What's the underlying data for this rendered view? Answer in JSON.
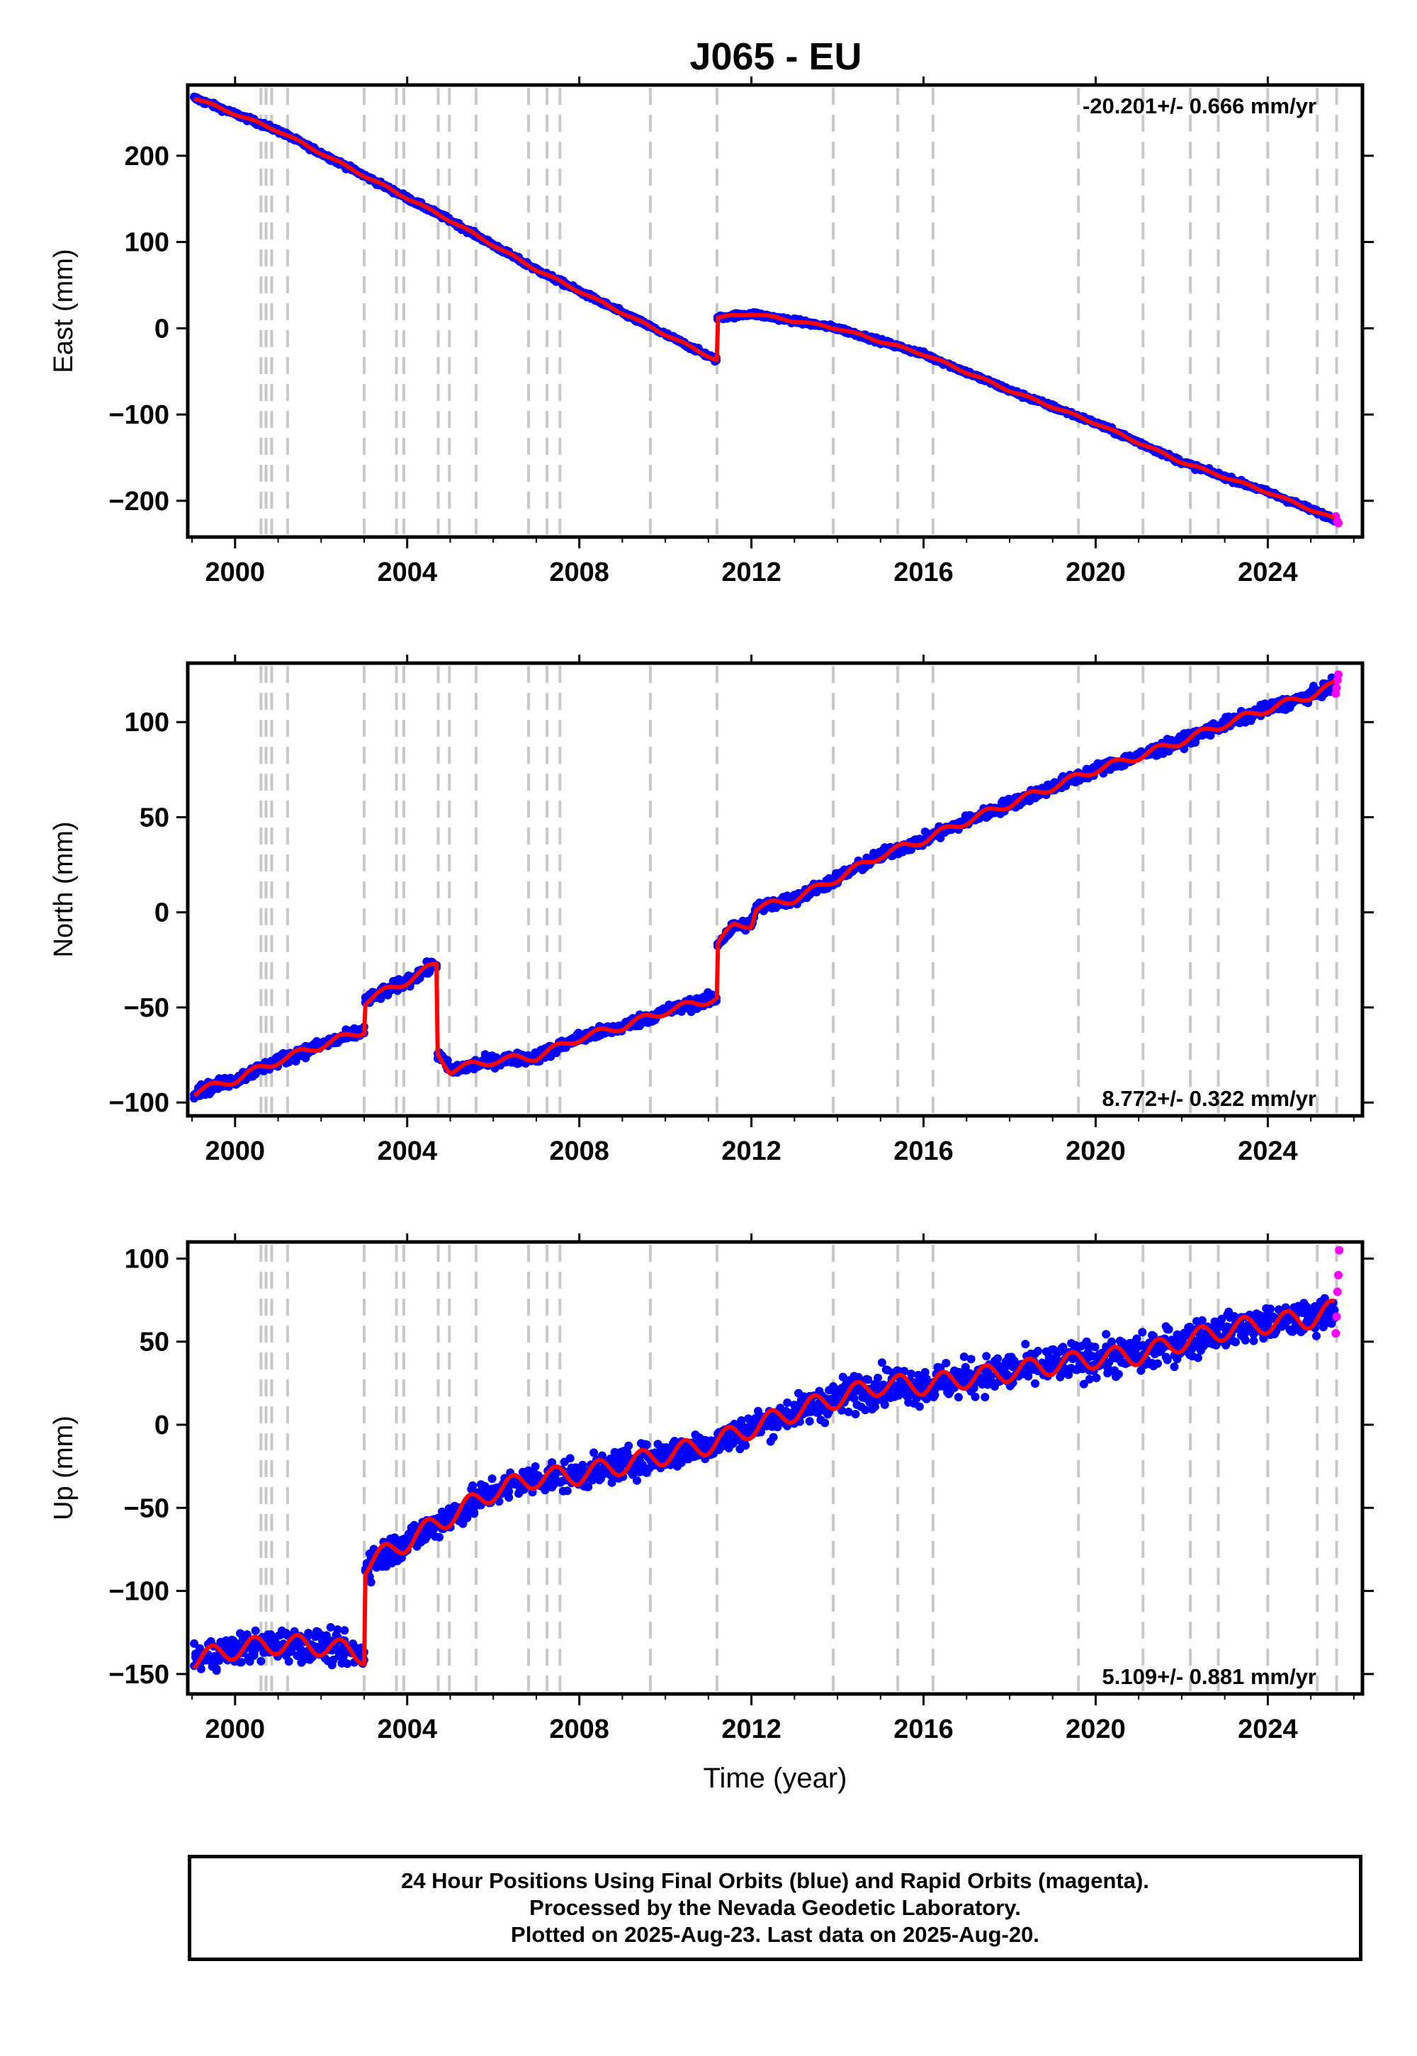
{
  "title": "J065 - EU",
  "colors": {
    "final": "#0000ff",
    "rapid": "#ff00ff",
    "model": "#ff0000",
    "vline": "#c8c8c8",
    "axis": "#000000"
  },
  "chart_data": [
    {
      "type": "scatter",
      "name": "east",
      "ylabel": "East (mm)",
      "xlim": [
        1998.9,
        2026.2
      ],
      "ylim": [
        -242,
        282
      ],
      "xticks": [
        2000,
        2004,
        2008,
        2012,
        2016,
        2020,
        2024
      ],
      "yticks": [
        -200,
        -100,
        0,
        100,
        200
      ],
      "ytick_labels": [
        "−200",
        "−100",
        "0",
        "100",
        "200"
      ],
      "rate_label": "-20.201+/- 0.666 mm/yr",
      "rate_position": "top-right",
      "model_points": [
        [
          1999.0,
          268
        ],
        [
          2001.0,
          229
        ],
        [
          2003.0,
          177
        ],
        [
          2005.0,
          125
        ],
        [
          2007.0,
          68
        ],
        [
          2009.0,
          18
        ],
        [
          2011.2,
          -37
        ],
        [
          2011.2,
          12
        ],
        [
          2012.0,
          17
        ],
        [
          2014.0,
          0
        ],
        [
          2016.0,
          -30
        ],
        [
          2018.0,
          -72
        ],
        [
          2020.0,
          -110
        ],
        [
          2022.0,
          -155
        ],
        [
          2024.0,
          -190
        ],
        [
          2025.6,
          -222
        ]
      ],
      "rapid_points": [
        [
          2025.58,
          -218
        ],
        [
          2025.62,
          -224
        ],
        [
          2025.64,
          -226
        ]
      ]
    },
    {
      "type": "scatter",
      "name": "north",
      "ylabel": "North (mm)",
      "xlim": [
        1998.9,
        2026.2
      ],
      "ylim": [
        -107,
        131
      ],
      "xticks": [
        2000,
        2004,
        2008,
        2012,
        2016,
        2020,
        2024
      ],
      "yticks": [
        -100,
        -50,
        0,
        50,
        100
      ],
      "ytick_labels": [
        "−100",
        "−50",
        "0",
        "50",
        "100"
      ],
      "rate_label": "8.772+/- 0.322 mm/yr",
      "rate_position": "bottom-right",
      "model_points": [
        [
          1999.0,
          -95
        ],
        [
          2000.0,
          -88
        ],
        [
          2001.0,
          -78
        ],
        [
          2002.0,
          -70
        ],
        [
          2003.0,
          -62
        ],
        [
          2003.0,
          -47
        ],
        [
          2004.0,
          -36
        ],
        [
          2004.7,
          -27
        ],
        [
          2004.7,
          -74
        ],
        [
          2005.0,
          -83
        ],
        [
          2006.0,
          -78
        ],
        [
          2007.0,
          -76
        ],
        [
          2008.0,
          -66
        ],
        [
          2009.0,
          -60
        ],
        [
          2010.0,
          -52
        ],
        [
          2011.2,
          -45
        ],
        [
          2011.2,
          -17
        ],
        [
          2011.6,
          -7
        ],
        [
          2012.0,
          -6
        ],
        [
          2012.1,
          2
        ],
        [
          2013.0,
          7
        ],
        [
          2014.0,
          18
        ],
        [
          2015.0,
          30
        ],
        [
          2016.0,
          38
        ],
        [
          2017.0,
          48
        ],
        [
          2018.0,
          57
        ],
        [
          2019.0,
          66
        ],
        [
          2020.0,
          75
        ],
        [
          2021.0,
          82
        ],
        [
          2022.0,
          90
        ],
        [
          2023.0,
          99
        ],
        [
          2024.0,
          107
        ],
        [
          2025.0,
          114
        ],
        [
          2025.6,
          120
        ]
      ],
      "rapid_points": [
        [
          2025.58,
          115
        ],
        [
          2025.6,
          118
        ],
        [
          2025.62,
          122
        ],
        [
          2025.64,
          125
        ]
      ]
    },
    {
      "type": "scatter",
      "name": "up",
      "xlabel": "Time (year)",
      "ylabel": "Up (mm)",
      "xlim": [
        1998.9,
        2026.2
      ],
      "ylim": [
        -162,
        110
      ],
      "xticks": [
        2000,
        2004,
        2008,
        2012,
        2016,
        2020,
        2024
      ],
      "yticks": [
        -150,
        -100,
        -50,
        0,
        50,
        100
      ],
      "ytick_labels": [
        "−150",
        "−100",
        "−50",
        "0",
        "50",
        "100"
      ],
      "rate_label": "5.109+/- 0.881 mm/yr",
      "rate_position": "bottom-right",
      "model_points": [
        [
          1999.0,
          -142
        ],
        [
          2000.0,
          -135
        ],
        [
          2001.0,
          -132
        ],
        [
          2002.0,
          -133
        ],
        [
          2003.0,
          -138
        ],
        [
          2003.0,
          -85
        ],
        [
          2004.0,
          -70
        ],
        [
          2005.0,
          -55
        ],
        [
          2006.0,
          -40
        ],
        [
          2007.0,
          -32
        ],
        [
          2008.0,
          -30
        ],
        [
          2009.0,
          -24
        ],
        [
          2010.0,
          -18
        ],
        [
          2011.0,
          -12
        ],
        [
          2012.0,
          -2
        ],
        [
          2013.0,
          8
        ],
        [
          2014.0,
          16
        ],
        [
          2015.0,
          24
        ],
        [
          2016.0,
          24
        ],
        [
          2017.0,
          28
        ],
        [
          2018.0,
          32
        ],
        [
          2019.0,
          36
        ],
        [
          2020.0,
          40
        ],
        [
          2021.0,
          42
        ],
        [
          2022.0,
          50
        ],
        [
          2023.0,
          57
        ],
        [
          2024.0,
          61
        ],
        [
          2025.0,
          64
        ],
        [
          2025.6,
          70
        ]
      ],
      "rapid_points": [
        [
          2025.58,
          55
        ],
        [
          2025.6,
          65
        ],
        [
          2025.62,
          80
        ],
        [
          2025.64,
          90
        ],
        [
          2025.66,
          105
        ]
      ]
    }
  ],
  "event_lines": [
    2000.6,
    2000.72,
    2000.85,
    2001.22,
    2003.0,
    2003.75,
    2003.92,
    2004.72,
    2004.98,
    2005.6,
    2006.82,
    2007.25,
    2007.55,
    2009.65,
    2011.2,
    2013.9,
    2015.4,
    2016.22,
    2019.6,
    2021.1,
    2022.2,
    2022.85,
    2024.0,
    2025.15,
    2025.6
  ],
  "footer": {
    "line1": "24 Hour Positions Using Final Orbits (blue) and Rapid Orbits (magenta).",
    "line2": "Processed by the Nevada Geodetic Laboratory.",
    "line3": "Plotted on 2025-Aug-23. Last data on 2025-Aug-20."
  }
}
